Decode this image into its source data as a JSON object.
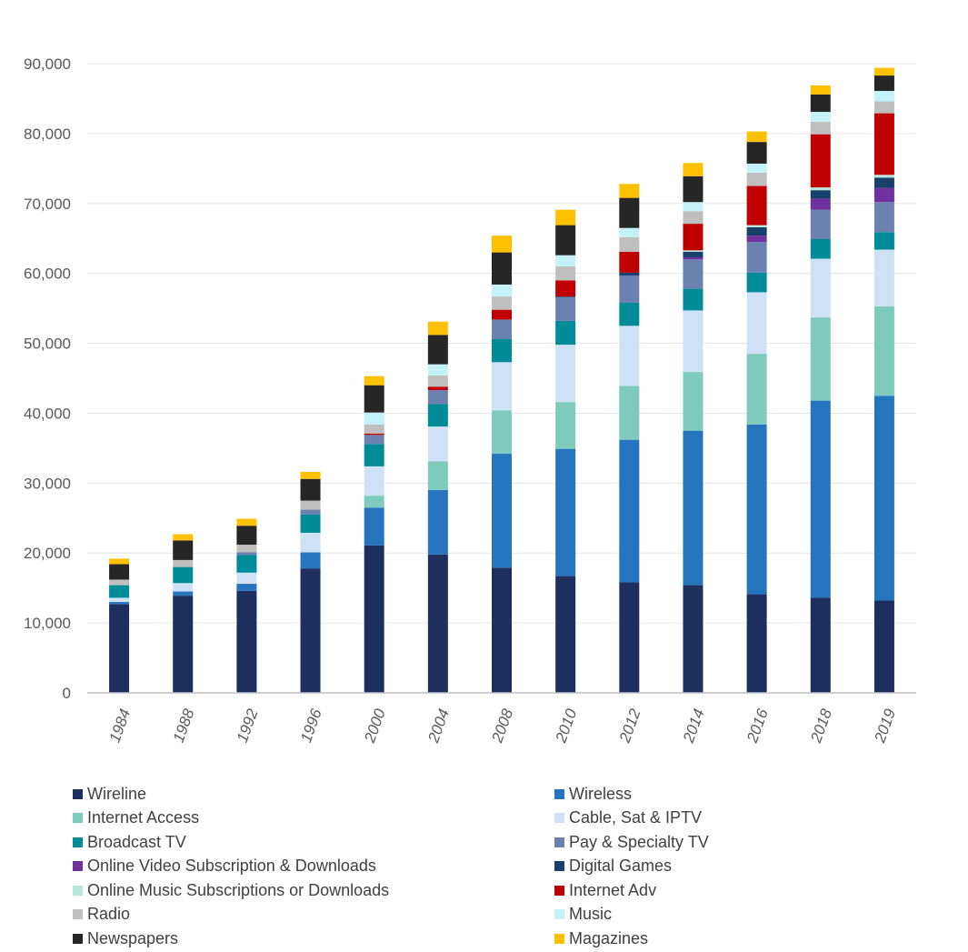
{
  "chart_data": {
    "type": "bar",
    "stacked": true,
    "title": "",
    "xlabel": "",
    "ylabel": "",
    "ylim": [
      0,
      90000
    ],
    "yticks": [
      0,
      10000,
      20000,
      30000,
      40000,
      50000,
      60000,
      70000,
      80000,
      90000
    ],
    "ytick_labels": [
      "0",
      "10,000",
      "20,000",
      "30,000",
      "40,000",
      "50,000",
      "60,000",
      "70,000",
      "80,000",
      "90,000"
    ],
    "grid": true,
    "legend_position": "bottom",
    "categories": [
      "1984",
      "1988",
      "1992",
      "1996",
      "2000",
      "2004",
      "2008",
      "2010",
      "2012",
      "2014",
      "2016",
      "2018",
      "2019"
    ],
    "series": [
      {
        "name": "Wireline",
        "color": "#1c2f5e",
        "values": [
          12700,
          13900,
          14600,
          17800,
          21100,
          19800,
          17900,
          16700,
          15800,
          15400,
          14100,
          13600,
          13200
        ]
      },
      {
        "name": "Wireless",
        "color": "#2574be",
        "values": [
          300,
          600,
          1000,
          2300,
          5400,
          9200,
          16300,
          18200,
          20400,
          22100,
          24300,
          28200,
          29300
        ]
      },
      {
        "name": "Internet Access",
        "color": "#7ecbbe",
        "values": [
          0,
          0,
          0,
          0,
          1700,
          4100,
          6200,
          6700,
          7700,
          8400,
          10100,
          11900,
          12800
        ]
      },
      {
        "name": "Cable, Sat & IPTV",
        "color": "#cfe1f6",
        "values": [
          600,
          1200,
          1600,
          2800,
          4200,
          5000,
          6900,
          8200,
          8600,
          8800,
          8800,
          8400,
          8100
        ]
      },
      {
        "name": "Broadcast TV",
        "color": "#008b99",
        "values": [
          1800,
          2300,
          2500,
          2600,
          3200,
          3200,
          3300,
          3400,
          3300,
          3100,
          2800,
          2800,
          2500
        ]
      },
      {
        "name": "Pay & Specialty TV",
        "color": "#6b81b0",
        "values": [
          0,
          0,
          400,
          700,
          1300,
          2000,
          2800,
          3400,
          3900,
          4200,
          4400,
          4200,
          4300
        ]
      },
      {
        "name": "Online Video Subscription & Downloads",
        "color": "#7030a0",
        "values": [
          0,
          0,
          0,
          0,
          0,
          0,
          0,
          0,
          0,
          300,
          900,
          1600,
          2000
        ]
      },
      {
        "name": "Digital Games",
        "color": "#17406b",
        "values": [
          0,
          0,
          0,
          0,
          0,
          0,
          0,
          100,
          400,
          800,
          1200,
          1200,
          1500
        ]
      },
      {
        "name": "Online Music Subscriptions or Downloads",
        "color": "#b8e6dc",
        "values": [
          0,
          0,
          0,
          0,
          0,
          0,
          0,
          0,
          0,
          200,
          300,
          400,
          400
        ]
      },
      {
        "name": "Internet Adv",
        "color": "#c00000",
        "values": [
          0,
          0,
          0,
          0,
          200,
          500,
          1400,
          2300,
          3000,
          3800,
          5600,
          7600,
          8800
        ]
      },
      {
        "name": "Radio",
        "color": "#bfbfbf",
        "values": [
          800,
          1000,
          1100,
          1300,
          1300,
          1600,
          1900,
          2000,
          2100,
          1800,
          1900,
          1800,
          1700
        ]
      },
      {
        "name": "Music",
        "color": "#c3f3f8",
        "values": [
          0,
          0,
          0,
          0,
          1700,
          1600,
          1700,
          1600,
          1300,
          1300,
          1300,
          1400,
          1500
        ]
      },
      {
        "name": "Newspapers",
        "color": "#262626",
        "values": [
          2200,
          2800,
          2700,
          3100,
          3900,
          4200,
          4600,
          4300,
          4300,
          3700,
          3100,
          2500,
          2200
        ]
      },
      {
        "name": "Magazines",
        "color": "#ffc000",
        "values": [
          800,
          900,
          1000,
          1000,
          1300,
          1900,
          2400,
          2200,
          2000,
          1900,
          1500,
          1300,
          1100
        ]
      }
    ]
  }
}
